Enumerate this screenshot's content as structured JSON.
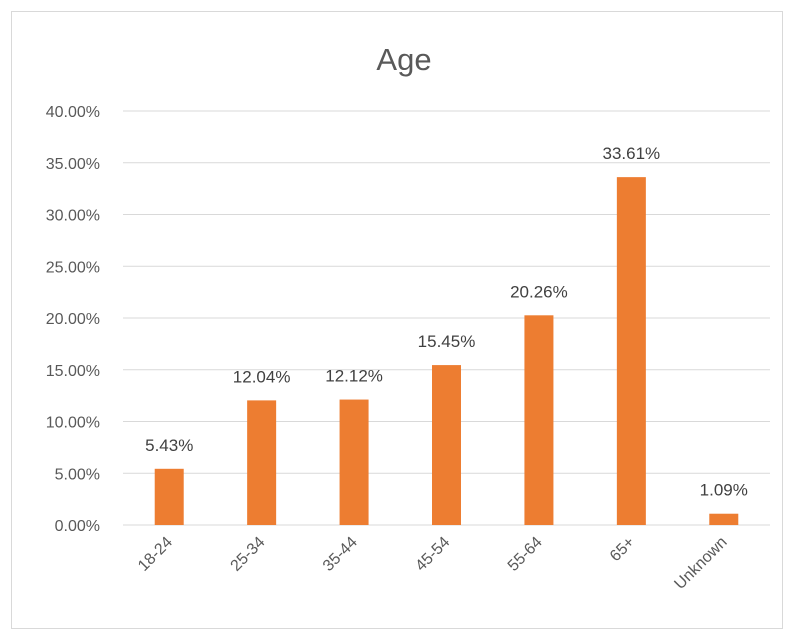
{
  "chart_data": {
    "type": "bar",
    "title": "Age",
    "xlabel": "",
    "ylabel": "",
    "categories": [
      "18-24",
      "25-34",
      "35-44",
      "45-54",
      "55-64",
      "65+",
      "Unknown"
    ],
    "values": [
      5.43,
      12.04,
      12.12,
      15.45,
      20.26,
      33.61,
      1.09
    ],
    "data_labels": [
      "5.43%",
      "12.04%",
      "12.12%",
      "15.45%",
      "20.26%",
      "33.61%",
      "1.09%"
    ],
    "y_ticks": [
      "0.00%",
      "5.00%",
      "10.00%",
      "15.00%",
      "20.00%",
      "25.00%",
      "30.00%",
      "35.00%",
      "40.00%"
    ],
    "ylim": [
      0,
      40
    ],
    "grid": true,
    "legend": "none",
    "bar_color": "#ed7d31"
  }
}
